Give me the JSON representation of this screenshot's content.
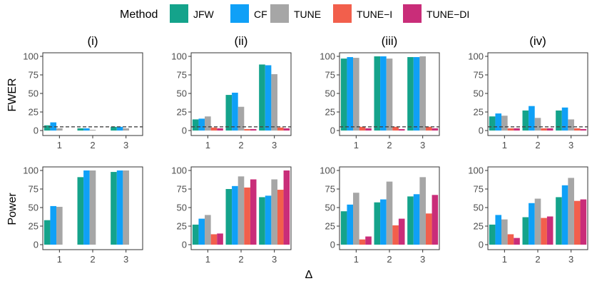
{
  "legend": {
    "title": "Method",
    "items": [
      {
        "label": "JFW",
        "color": "#14a38b"
      },
      {
        "label": "CF",
        "color": "#0fa0f7"
      },
      {
        "label": "TUNE",
        "color": "#a6a6a6"
      },
      {
        "label": "TUNE−I",
        "color": "#f25f4c"
      },
      {
        "label": "TUNE−DI",
        "color": "#c92d79"
      }
    ]
  },
  "row_labels": [
    "FWER",
    "Power"
  ],
  "xlabel": "Δ",
  "col_titles": [
    "(i)",
    "(ii)",
    "(iii)",
    "(iv)"
  ],
  "chart_data": {
    "type": "bar",
    "categories": [
      "1",
      "2",
      "3"
    ],
    "ylim": [
      0,
      100
    ],
    "yticks": [
      0,
      25,
      50,
      75,
      100
    ],
    "reference_line": {
      "row": "FWER",
      "value": 5,
      "style": "dashed"
    },
    "series_names": [
      "JFW",
      "CF",
      "TUNE",
      "TUNE−I",
      "TUNE−DI"
    ],
    "panels": [
      {
        "row": "FWER",
        "col": "(i)",
        "series": [
          {
            "name": "JFW",
            "values": [
              7,
              3,
              5
            ]
          },
          {
            "name": "CF",
            "values": [
              11,
              3,
              5
            ]
          },
          {
            "name": "TUNE",
            "values": [
              3,
              1,
              3
            ]
          },
          {
            "name": "TUNE−I",
            "values": [
              null,
              null,
              null
            ]
          },
          {
            "name": "TUNE−DI",
            "values": [
              null,
              null,
              null
            ]
          }
        ]
      },
      {
        "row": "FWER",
        "col": "(ii)",
        "series": [
          {
            "name": "JFW",
            "values": [
              15,
              48,
              89
            ]
          },
          {
            "name": "CF",
            "values": [
              16,
              51,
              88
            ]
          },
          {
            "name": "TUNE",
            "values": [
              19,
              32,
              76
            ]
          },
          {
            "name": "TUNE−I",
            "values": [
              4,
              2,
              4
            ]
          },
          {
            "name": "TUNE−DI",
            "values": [
              3,
              2,
              3
            ]
          }
        ]
      },
      {
        "row": "FWER",
        "col": "(iii)",
        "series": [
          {
            "name": "JFW",
            "values": [
              97,
              100,
              99
            ]
          },
          {
            "name": "CF",
            "values": [
              99,
              100,
              99
            ]
          },
          {
            "name": "TUNE",
            "values": [
              98,
              97,
              100
            ]
          },
          {
            "name": "TUNE−I",
            "values": [
              5,
              5,
              5
            ]
          },
          {
            "name": "TUNE−DI",
            "values": [
              3,
              2,
              3
            ]
          }
        ]
      },
      {
        "row": "FWER",
        "col": "(iv)",
        "series": [
          {
            "name": "JFW",
            "values": [
              19,
              27,
              27
            ]
          },
          {
            "name": "CF",
            "values": [
              23,
              33,
              31
            ]
          },
          {
            "name": "TUNE",
            "values": [
              20,
              17,
              15
            ]
          },
          {
            "name": "TUNE−I",
            "values": [
              3,
              3,
              3
            ]
          },
          {
            "name": "TUNE−DI",
            "values": [
              3,
              3,
              2
            ]
          }
        ]
      },
      {
        "row": "Power",
        "col": "(i)",
        "series": [
          {
            "name": "JFW",
            "values": [
              33,
              91,
              98
            ]
          },
          {
            "name": "CF",
            "values": [
              52,
              100,
              100
            ]
          },
          {
            "name": "TUNE",
            "values": [
              51,
              100,
              100
            ]
          },
          {
            "name": "TUNE−I",
            "values": [
              null,
              null,
              null
            ]
          },
          {
            "name": "TUNE−DI",
            "values": [
              null,
              null,
              null
            ]
          }
        ]
      },
      {
        "row": "Power",
        "col": "(ii)",
        "series": [
          {
            "name": "JFW",
            "values": [
              27,
              75,
              64
            ]
          },
          {
            "name": "CF",
            "values": [
              35,
              79,
              66
            ]
          },
          {
            "name": "TUNE",
            "values": [
              40,
              92,
              88
            ]
          },
          {
            "name": "TUNE−I",
            "values": [
              14,
              77,
              74
            ]
          },
          {
            "name": "TUNE−DI",
            "values": [
              15,
              88,
              100
            ]
          }
        ]
      },
      {
        "row": "Power",
        "col": "(iii)",
        "series": [
          {
            "name": "JFW",
            "values": [
              45,
              57,
              65
            ]
          },
          {
            "name": "CF",
            "values": [
              54,
              61,
              68
            ]
          },
          {
            "name": "TUNE",
            "values": [
              70,
              85,
              91
            ]
          },
          {
            "name": "TUNE−I",
            "values": [
              7,
              26,
              42
            ]
          },
          {
            "name": "TUNE−DI",
            "values": [
              11,
              35,
              67
            ]
          }
        ]
      },
      {
        "row": "Power",
        "col": "(iv)",
        "series": [
          {
            "name": "JFW",
            "values": [
              27,
              37,
              64
            ]
          },
          {
            "name": "CF",
            "values": [
              40,
              56,
              80
            ]
          },
          {
            "name": "TUNE",
            "values": [
              34,
              62,
              90
            ]
          },
          {
            "name": "TUNE−I",
            "values": [
              14,
              36,
              59
            ]
          },
          {
            "name": "TUNE−DI",
            "values": [
              9,
              38,
              61
            ]
          }
        ]
      }
    ]
  }
}
